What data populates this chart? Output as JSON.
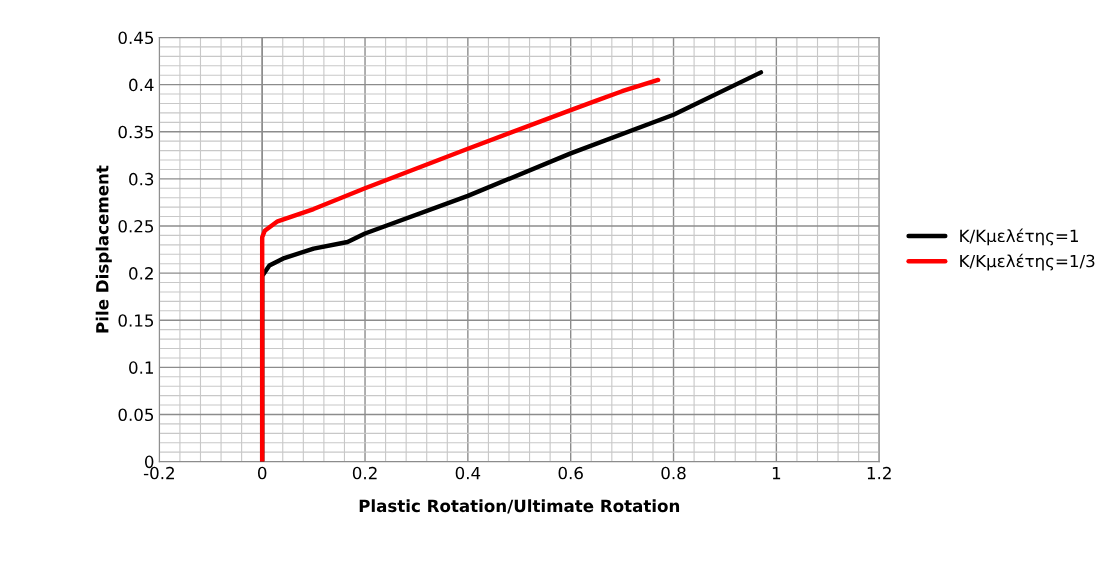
{
  "chart_data": {
    "type": "line",
    "xlabel": "Plastic Rotation/Ultimate Rotation",
    "ylabel": "Pile Displacement",
    "xlim": [
      -0.2,
      1.2
    ],
    "xticks": [
      -0.2,
      0,
      0.2,
      0.4,
      0.6,
      0.8,
      1,
      1.2
    ],
    "ylim": [
      0,
      0.45
    ],
    "yticks": [
      0,
      0.05,
      0.1,
      0.15,
      0.2,
      0.25,
      0.3,
      0.35,
      0.4,
      0.45
    ],
    "grid": true,
    "legend": "right",
    "marker": "none",
    "line_style": "solid",
    "series": [
      {
        "name": "Κ/Κμελέτης=1",
        "color": "#000000",
        "x": [
          0,
          0,
          0.014,
          0.043,
          0.1,
          0.166,
          0.2,
          0.4,
          0.6,
          0.8,
          0.97
        ],
        "values": [
          0,
          0.197,
          0.208,
          0.216,
          0.226,
          0.233,
          0.242,
          0.282,
          0.327,
          0.368,
          0.413
        ]
      },
      {
        "name": "Κ/Κμελέτης=1/3",
        "color": "#ff0000",
        "x": [
          0,
          0,
          0.005,
          0.03,
          0.1,
          0.2,
          0.4,
          0.6,
          0.65,
          0.7,
          0.77
        ],
        "values": [
          0,
          0.238,
          0.245,
          0.255,
          0.268,
          0.29,
          0.332,
          0.373,
          0.383,
          0.393,
          0.405
        ]
      }
    ]
  }
}
